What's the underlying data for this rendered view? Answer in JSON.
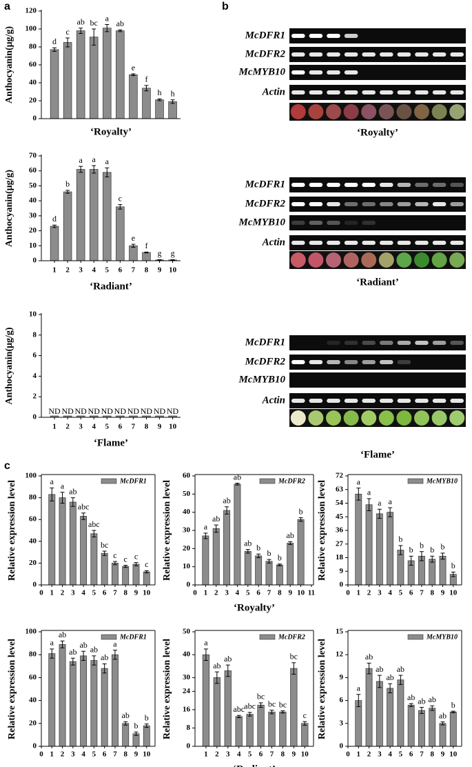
{
  "panel_labels": [
    "a",
    "b",
    "c"
  ],
  "chart_data": [
    {
      "type": "bar",
      "ylabel": "Anthocyanin(μg/g)",
      "xlabel": "‘Royalty’",
      "ylim": [
        0,
        120
      ],
      "yticks": [
        0,
        20,
        40,
        60,
        80,
        100,
        120
      ],
      "values": [
        77,
        85,
        98,
        91,
        101,
        98,
        49,
        34,
        21,
        19
      ],
      "errors": [
        2,
        5,
        3,
        9,
        4,
        1,
        1,
        3,
        1,
        2
      ],
      "annotations": [
        "d",
        "c",
        "ab",
        "bc",
        "a",
        "ab",
        "e",
        "f",
        "h",
        "h"
      ],
      "color": "#8c8c8c"
    },
    {
      "type": "bar",
      "ylabel": "Anthocyanin(μg/g)",
      "xlabel": "‘Radiant’",
      "ylim": [
        0,
        70
      ],
      "yticks": [
        0,
        10,
        20,
        30,
        40,
        50,
        60,
        70
      ],
      "categories": [
        "1",
        "2",
        "3",
        "4",
        "5",
        "6",
        "7",
        "8",
        "9",
        "10"
      ],
      "values": [
        23,
        46,
        61,
        61,
        59,
        36,
        10,
        5.5,
        0.5,
        0.5
      ],
      "errors": [
        0.8,
        1,
        2,
        2.5,
        3,
        1.5,
        1,
        0.3,
        0.2,
        0.2
      ],
      "annotations": [
        "d",
        "b",
        "a",
        "a",
        "a",
        "c",
        "e",
        "f",
        "g",
        "g"
      ],
      "color": "#8c8c8c"
    },
    {
      "type": "bar",
      "ylabel": "Anthocyanin(μg/g)",
      "xlabel": "‘Flame’",
      "ylim": [
        0,
        10
      ],
      "yticks": [
        0,
        2,
        4,
        6,
        8,
        10
      ],
      "categories": [
        "1",
        "2",
        "3",
        "4",
        "5",
        "6",
        "7",
        "8",
        "9",
        "10"
      ],
      "values": [
        0,
        0,
        0,
        0,
        0,
        0,
        0,
        0,
        0,
        0
      ],
      "annotations": [
        "ND",
        "ND",
        "ND",
        "ND",
        "ND",
        "ND",
        "ND",
        "ND",
        "ND",
        "ND"
      ],
      "color": "#8c8c8c"
    },
    {
      "type": "bar",
      "ylabel": "Relative expression level",
      "ylim": [
        0,
        100
      ],
      "yticks": [
        0,
        20,
        40,
        60,
        80,
        100
      ],
      "xlim": [
        0,
        10.8
      ],
      "xticks": [
        0,
        1,
        2,
        3,
        4,
        5,
        6,
        7,
        8,
        9,
        10
      ],
      "x": [
        1,
        2,
        3,
        4,
        5,
        6,
        7,
        8,
        9,
        10
      ],
      "series": [
        {
          "name": "McDFR1",
          "color": "#8c8c8c",
          "values": [
            83,
            80,
            76,
            63,
            47,
            29,
            20,
            17,
            19,
            12
          ]
        }
      ],
      "errors": [
        6,
        5,
        4,
        3,
        3,
        2,
        1.5,
        1,
        1.5,
        1
      ],
      "annotations": [
        "a",
        "a",
        "ab",
        "abc",
        "abc",
        "bc",
        "c",
        "c",
        "c",
        "c"
      ]
    },
    {
      "type": "bar",
      "ylabel": "Relative expression level",
      "xlabel": "‘Royalty’",
      "ylim": [
        0,
        60
      ],
      "yticks": [
        0,
        10,
        20,
        30,
        40,
        50,
        60
      ],
      "xlim": [
        0,
        11.2
      ],
      "xticks": [
        0,
        1,
        2,
        3,
        4,
        5,
        6,
        7,
        8,
        9,
        10,
        11
      ],
      "x": [
        1,
        2,
        3,
        4,
        5,
        6,
        7,
        8,
        9,
        10
      ],
      "series": [
        {
          "name": "McDFR2",
          "color": "#8c8c8c",
          "values": [
            27,
            31,
            41,
            55.5,
            18.5,
            16,
            13,
            11,
            23,
            36
          ]
        }
      ],
      "errors": [
        1.5,
        2,
        2,
        0.5,
        1,
        1,
        1,
        0.5,
        0.8,
        1
      ],
      "annotations": [
        "a",
        "ab",
        "ab",
        "ab",
        "ab",
        "b",
        "b",
        "b",
        "ab",
        "b"
      ]
    },
    {
      "type": "bar",
      "ylabel": "Relative expression level",
      "ylim": [
        0,
        72
      ],
      "yticks": [
        0,
        9,
        18,
        27,
        36,
        45,
        54,
        63,
        72
      ],
      "xlim": [
        0,
        10.8
      ],
      "xticks": [
        0,
        1,
        2,
        3,
        4,
        5,
        6,
        7,
        8,
        9,
        10
      ],
      "x": [
        1,
        2,
        3,
        4,
        5,
        6,
        7,
        8,
        9,
        10
      ],
      "series": [
        {
          "name": "McMYB10",
          "color": "#8c8c8c",
          "values": [
            60,
            53,
            47,
            48,
            23,
            16,
            19,
            17,
            19,
            7
          ]
        }
      ],
      "errors": [
        4,
        4,
        3,
        3,
        3,
        3,
        3,
        2,
        2,
        1.5
      ],
      "annotations": [
        "a",
        "a",
        "a",
        "a",
        "b",
        "b",
        "b",
        "b",
        "b",
        "b"
      ]
    },
    {
      "type": "bar",
      "ylabel": "Relative expression level",
      "ylim": [
        0,
        100
      ],
      "yticks": [
        0,
        20,
        40,
        60,
        80,
        100
      ],
      "xlim": [
        0,
        10.8
      ],
      "xticks": [
        0,
        1,
        2,
        3,
        4,
        5,
        6,
        7,
        8,
        9,
        10
      ],
      "x": [
        1,
        2,
        3,
        4,
        5,
        6,
        7,
        8,
        9,
        10
      ],
      "series": [
        {
          "name": "McDFR1",
          "color": "#8c8c8c",
          "values": [
            81,
            89,
            74,
            79,
            75,
            68,
            80,
            20,
            11,
            18
          ]
        }
      ],
      "errors": [
        4,
        3,
        3,
        4,
        4,
        4,
        4,
        1.5,
        1.5,
        1.5
      ],
      "annotations": [
        "a",
        "ab",
        "ab",
        "ab",
        "ab",
        "ab",
        "a",
        "ab",
        "b",
        "b"
      ]
    },
    {
      "type": "bar",
      "ylabel": "Relative expression level",
      "xlabel": "‘Radiant’",
      "ylim": [
        0,
        50
      ],
      "yticks": [
        0,
        8,
        16,
        24,
        30,
        40,
        50
      ],
      "xlim": [
        0,
        10.8
      ],
      "xticks": [
        1,
        2,
        3,
        4,
        5,
        6,
        7,
        8,
        9,
        10
      ],
      "x": [
        1,
        2,
        3,
        4,
        5,
        6,
        7,
        8,
        9,
        10
      ],
      "series": [
        {
          "name": "McDFR2",
          "color": "#8c8c8c",
          "values": [
            40,
            30,
            33,
            13,
            14,
            18,
            15,
            15,
            34,
            10
          ]
        }
      ],
      "errors": [
        2.5,
        2.5,
        2.5,
        0.5,
        0.8,
        1,
        0.8,
        0.5,
        2.5,
        0.8
      ],
      "annotations": [
        "a",
        "ab",
        "ab",
        "abc",
        "abc",
        "bc",
        "bc",
        "bc",
        "bc",
        "c"
      ]
    },
    {
      "type": "bar",
      "ylabel": "Relative expression level",
      "ylim": [
        0,
        15
      ],
      "yticks": [
        0,
        3,
        6,
        9,
        12,
        15
      ],
      "xlim": [
        0,
        10.8
      ],
      "xticks": [
        0,
        1,
        2,
        3,
        4,
        5,
        6,
        7,
        8,
        9,
        10
      ],
      "x": [
        1,
        2,
        3,
        4,
        5,
        6,
        7,
        8,
        9,
        10
      ],
      "series": [
        {
          "name": "McMYB10",
          "color": "#8c8c8c",
          "values": [
            6,
            10.2,
            8.5,
            7.6,
            8.7,
            5.4,
            4.7,
            5,
            3,
            4.5
          ]
        }
      ],
      "errors": [
        0.8,
        0.7,
        0.8,
        0.6,
        0.6,
        0.2,
        0.4,
        0.3,
        0.2,
        0.1
      ],
      "annotations": [
        "a",
        "ab",
        "ab",
        "ab",
        "ab",
        "ab",
        "ab",
        "ab",
        "ab",
        "b"
      ]
    }
  ],
  "gels": [
    {
      "title": "‘Royalty’",
      "rows": [
        "McDFR1",
        "McDFR2",
        "McMYB10",
        "Actin"
      ]
    },
    {
      "title": "‘Radiant’",
      "rows": [
        "McDFR1",
        "McDFR2",
        "McMYB10",
        "Actin"
      ]
    },
    {
      "title": "‘Flame’",
      "rows": [
        "McDFR1",
        "McDFR2",
        "McMYB10",
        "Actin"
      ]
    }
  ]
}
